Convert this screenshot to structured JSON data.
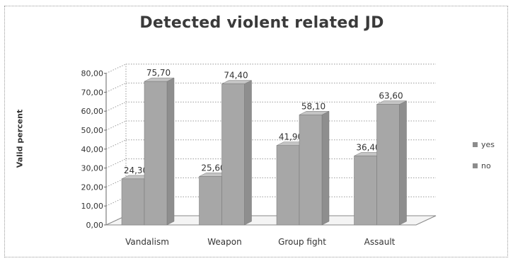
{
  "chart_data": {
    "type": "bar",
    "title": "Detected violent related JD",
    "xlabel": "",
    "ylabel": "Valid percent",
    "ylim": [
      0,
      80
    ],
    "yticks": [
      "0,00",
      "10,00",
      "20,00",
      "30,00",
      "40,00",
      "50,00",
      "60,00",
      "70,00",
      "80,00"
    ],
    "categories": [
      "Vandalism",
      "Weapon",
      "Group fight",
      "Assault"
    ],
    "series": [
      {
        "name": "yes",
        "values": [
          24.3,
          25.6,
          41.9,
          36.4
        ],
        "labels": [
          "24,30",
          "25,60",
          "41,90",
          "36,40"
        ]
      },
      {
        "name": "no",
        "values": [
          75.7,
          74.4,
          58.1,
          63.6
        ],
        "labels": [
          "75,70",
          "74,40",
          "58,10",
          "63,60"
        ]
      }
    ],
    "grid": true,
    "legend": "right",
    "bar_color": "#a7a7a7"
  }
}
